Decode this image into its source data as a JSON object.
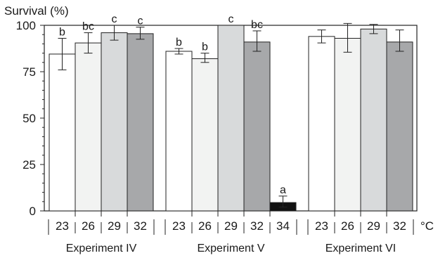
{
  "chart_data": {
    "type": "bar",
    "ylabel": "Survival (%)",
    "unit_label": "°C",
    "ylim": [
      0,
      100
    ],
    "yticks": [
      "0",
      "25",
      "50",
      "75",
      "100"
    ],
    "grid": false,
    "colors": {
      "23": "#ffffff",
      "26": "#f2f3f2",
      "29": "#d8dadb",
      "32": "#a7a8aa",
      "34": "#111111",
      "stroke": "#222222"
    },
    "groups": [
      {
        "name": "Experiment IV",
        "bars": [
          {
            "temp": "23",
            "value": 84.5,
            "err_low": 76,
            "err_high": 93,
            "sig": "b"
          },
          {
            "temp": "26",
            "value": 90.5,
            "err_low": 85,
            "err_high": 96,
            "sig": "bc"
          },
          {
            "temp": "29",
            "value": 96,
            "err_low": 92,
            "err_high": 100,
            "sig": "c"
          },
          {
            "temp": "32",
            "value": 95.5,
            "err_low": 92.5,
            "err_high": 99,
            "sig": "c"
          }
        ]
      },
      {
        "name": "Experiment V",
        "bars": [
          {
            "temp": "23",
            "value": 86,
            "err_low": 84.5,
            "err_high": 87.5,
            "sig": "b"
          },
          {
            "temp": "26",
            "value": 82,
            "err_low": 80,
            "err_high": 85,
            "sig": "b"
          },
          {
            "temp": "29",
            "value": 100,
            "err_low": 100,
            "err_high": 100,
            "sig": "c"
          },
          {
            "temp": "32",
            "value": 91,
            "err_low": 86,
            "err_high": 97,
            "sig": "bc"
          },
          {
            "temp": "34",
            "value": 4.5,
            "err_low": 2,
            "err_high": 8,
            "sig": "a"
          }
        ]
      },
      {
        "name": "Experiment VI",
        "bars": [
          {
            "temp": "23",
            "value": 94,
            "err_low": 90.5,
            "err_high": 97.5,
            "sig": ""
          },
          {
            "temp": "26",
            "value": 93,
            "err_low": 85.5,
            "err_high": 101,
            "sig": ""
          },
          {
            "temp": "29",
            "value": 98,
            "err_low": 95.5,
            "err_high": 100.5,
            "sig": ""
          },
          {
            "temp": "32",
            "value": 91,
            "err_low": 86,
            "err_high": 97.5,
            "sig": ""
          }
        ]
      }
    ]
  }
}
